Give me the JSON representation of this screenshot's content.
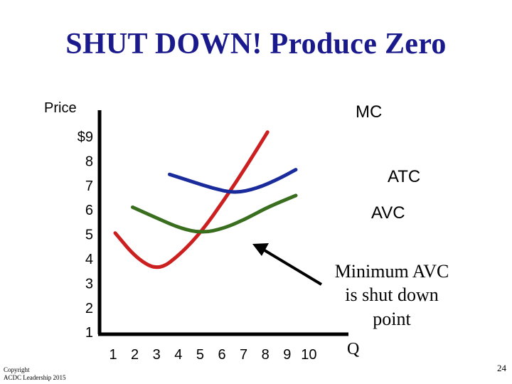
{
  "slide": {
    "title": "SHUT DOWN! Produce Zero",
    "footer_line1": "Copyright",
    "footer_line2": "ACDC Leadership 2015",
    "page_number": "24"
  },
  "chart_data": {
    "type": "line",
    "ylabel": "Price",
    "xlabel": "Q",
    "y_ticks": [
      "$9",
      "8",
      "7",
      "6",
      "5",
      "4",
      "3",
      "2",
      "1"
    ],
    "x_ticks": [
      "1",
      "2",
      "3",
      "4",
      "5",
      "6",
      "7",
      "8",
      "9",
      "10"
    ],
    "series": [
      {
        "name": "MC",
        "color": "#cc1f1f",
        "points": [
          [
            1.0,
            5.1
          ],
          [
            2.0,
            4.0
          ],
          [
            3.0,
            3.5
          ],
          [
            4.0,
            4.2
          ],
          [
            5.0,
            5.2
          ],
          [
            6.0,
            6.5
          ],
          [
            7.0,
            7.9
          ],
          [
            8.0,
            9.4
          ]
        ]
      },
      {
        "name": "ATC",
        "color": "#1a2b9c",
        "points": [
          [
            3.5,
            7.6
          ],
          [
            4.5,
            7.3
          ],
          [
            5.5,
            7.0
          ],
          [
            6.5,
            6.8
          ],
          [
            7.5,
            7.0
          ],
          [
            8.5,
            7.4
          ],
          [
            9.3,
            7.8
          ]
        ]
      },
      {
        "name": "AVC",
        "color": "#3a6e1f",
        "points": [
          [
            1.8,
            6.2
          ],
          [
            3.0,
            5.7
          ],
          [
            4.0,
            5.3
          ],
          [
            5.0,
            5.1
          ],
          [
            6.0,
            5.3
          ],
          [
            7.0,
            5.7
          ],
          [
            8.0,
            6.2
          ],
          [
            9.3,
            6.7
          ]
        ]
      }
    ],
    "annotation": {
      "lines": [
        "Minimum AVC",
        "is shut down",
        "point"
      ],
      "arrow_from": [
        8.3,
        3.2
      ],
      "arrow_to": [
        5.4,
        4.7
      ]
    }
  }
}
